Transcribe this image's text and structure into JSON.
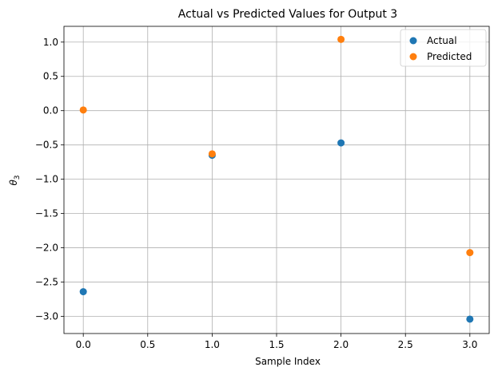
{
  "chart_data": {
    "type": "scatter",
    "title": "Actual vs Predicted Values for Output 3",
    "xlabel": "Sample Index",
    "ylabel_main": "θ",
    "ylabel_sub": "3",
    "xlim": [
      -0.15,
      3.15
    ],
    "ylim": [
      -3.25,
      1.23
    ],
    "xticks": [
      0.0,
      0.5,
      1.0,
      1.5,
      2.0,
      2.5,
      3.0
    ],
    "xtick_labels": [
      "0.0",
      "0.5",
      "1.0",
      "1.5",
      "2.0",
      "2.5",
      "3.0"
    ],
    "yticks": [
      1.0,
      0.5,
      0.0,
      -0.5,
      -1.0,
      -1.5,
      -2.0,
      -2.5,
      -3.0
    ],
    "ytick_labels": [
      "1.0",
      "0.5",
      "0.0",
      "−0.5",
      "−1.0",
      "−1.5",
      "−2.0",
      "−2.5",
      "−3.0"
    ],
    "grid": true,
    "legend_position": "top-right",
    "series": [
      {
        "name": "Actual",
        "color": "#1f77b4",
        "x": [
          0,
          1,
          2,
          3
        ],
        "y": [
          -2.64,
          -0.65,
          -0.47,
          -3.04
        ]
      },
      {
        "name": "Predicted",
        "color": "#ff7f0e",
        "x": [
          0,
          1,
          2,
          3
        ],
        "y": [
          0.01,
          -0.63,
          1.04,
          -2.07
        ]
      }
    ]
  }
}
